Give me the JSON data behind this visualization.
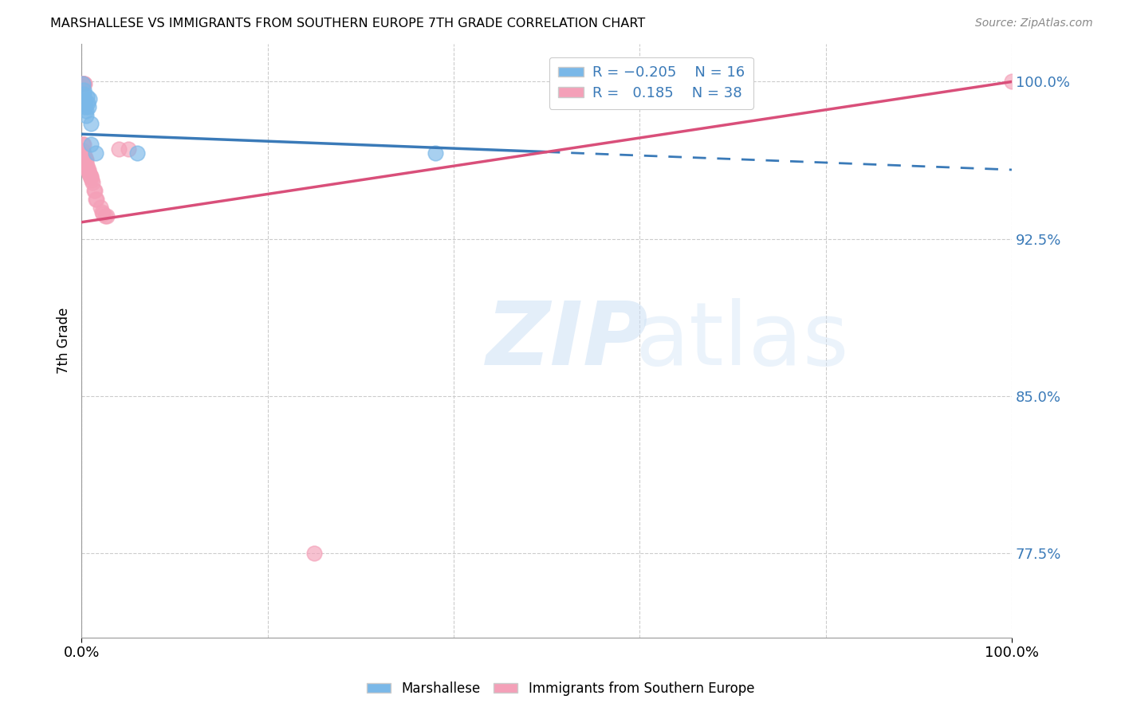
{
  "title": "MARSHALLESE VS IMMIGRANTS FROM SOUTHERN EUROPE 7TH GRADE CORRELATION CHART",
  "source": "Source: ZipAtlas.com",
  "ylabel": "7th Grade",
  "x_min": 0.0,
  "x_max": 1.0,
  "y_min": 0.735,
  "y_max": 1.018,
  "y_ticks": [
    0.775,
    0.85,
    0.925,
    1.0
  ],
  "y_tick_labels": [
    "77.5%",
    "85.0%",
    "92.5%",
    "100.0%"
  ],
  "x_tick_labels": [
    "0.0%",
    "100.0%"
  ],
  "x_ticks": [
    0.0,
    1.0
  ],
  "blue_color": "#7ab8e8",
  "pink_color": "#f4a0b8",
  "trend_blue": "#3a7ab8",
  "trend_pink": "#d94f7a",
  "blue_scatter": [
    [
      0.0015,
      0.999
    ],
    [
      0.002,
      0.994
    ],
    [
      0.0025,
      0.996
    ],
    [
      0.003,
      0.991
    ],
    [
      0.004,
      0.988
    ],
    [
      0.0045,
      0.986
    ],
    [
      0.005,
      0.984
    ],
    [
      0.006,
      0.993
    ],
    [
      0.0065,
      0.99
    ],
    [
      0.0075,
      0.988
    ],
    [
      0.0085,
      0.992
    ],
    [
      0.0095,
      0.98
    ],
    [
      0.01,
      0.97
    ],
    [
      0.015,
      0.966
    ],
    [
      0.06,
      0.966
    ],
    [
      0.38,
      0.966
    ]
  ],
  "pink_scatter": [
    [
      0.001,
      0.999
    ],
    [
      0.0015,
      0.999
    ],
    [
      0.0018,
      0.999
    ],
    [
      0.0022,
      0.999
    ],
    [
      0.0025,
      0.999
    ],
    [
      0.003,
      0.999
    ],
    [
      0.001,
      0.97
    ],
    [
      0.002,
      0.97
    ],
    [
      0.0015,
      0.967
    ],
    [
      0.0025,
      0.965
    ],
    [
      0.003,
      0.965
    ],
    [
      0.0035,
      0.963
    ],
    [
      0.004,
      0.963
    ],
    [
      0.0045,
      0.963
    ],
    [
      0.005,
      0.961
    ],
    [
      0.006,
      0.96
    ],
    [
      0.0065,
      0.958
    ],
    [
      0.007,
      0.958
    ],
    [
      0.008,
      0.956
    ],
    [
      0.0085,
      0.956
    ],
    [
      0.009,
      0.955
    ],
    [
      0.0095,
      0.955
    ],
    [
      0.01,
      0.954
    ],
    [
      0.011,
      0.953
    ],
    [
      0.012,
      0.952
    ],
    [
      0.013,
      0.948
    ],
    [
      0.014,
      0.948
    ],
    [
      0.015,
      0.944
    ],
    [
      0.016,
      0.944
    ],
    [
      0.02,
      0.94
    ],
    [
      0.022,
      0.938
    ],
    [
      0.025,
      0.936
    ],
    [
      0.023,
      0.937
    ],
    [
      0.027,
      0.936
    ],
    [
      0.04,
      0.968
    ],
    [
      0.05,
      0.968
    ],
    [
      0.25,
      0.775
    ],
    [
      1.0,
      1.0
    ]
  ],
  "blue_trend_y_start": 0.975,
  "blue_trend_y_end": 0.958,
  "pink_trend_y_start": 0.933,
  "pink_trend_y_end": 1.0,
  "dashed_after_intersect": true
}
